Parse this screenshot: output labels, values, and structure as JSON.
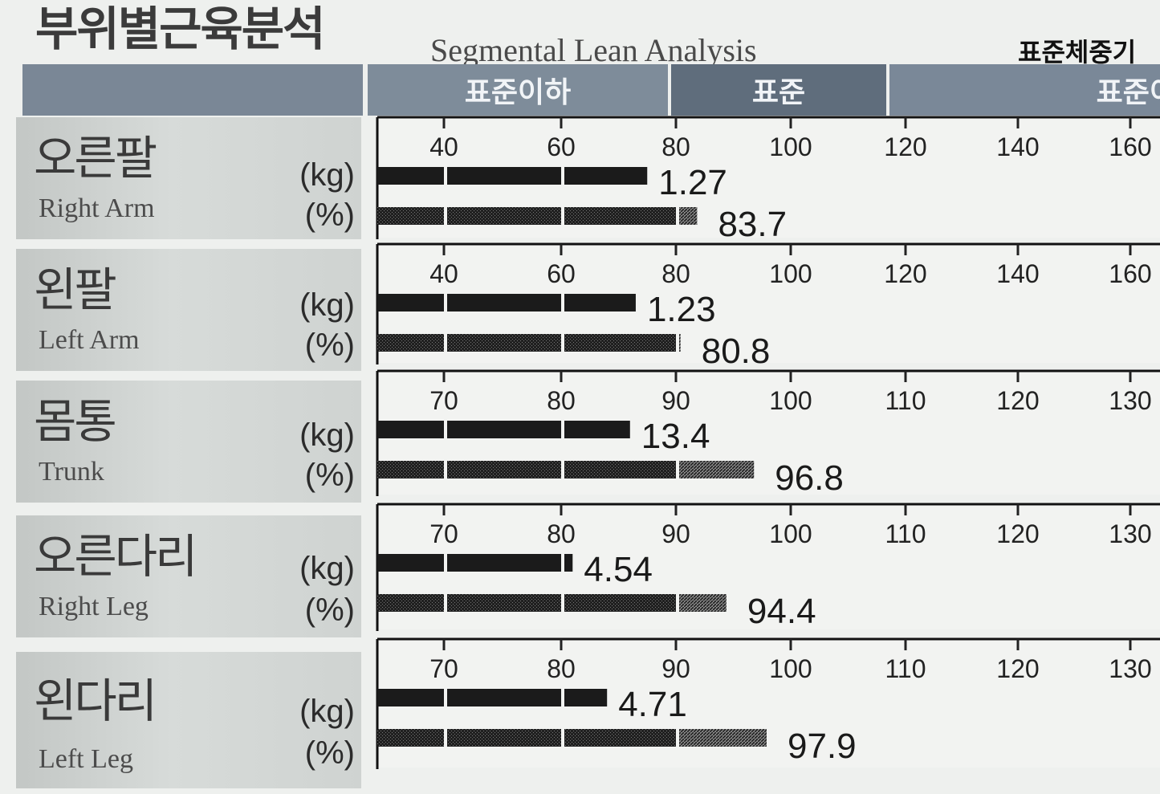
{
  "header": {
    "title_ko": "부위별근육분석",
    "title_en": "Segmental Lean Analysis",
    "standard_weight": "표준체중기"
  },
  "zones": [
    {
      "label": "표준이하",
      "color": "#7e8c9a"
    },
    {
      "label": "표준",
      "color": "#5f6d7c"
    },
    {
      "label": "표준이",
      "color": "#7a8898"
    }
  ],
  "units": {
    "kg": "(kg)",
    "pct": "(%)"
  },
  "colors": {
    "kg_bar": "#1b1b1b",
    "pct_bar": "#3d3d3d",
    "frame": "#111111"
  },
  "chart_data": [
    {
      "type": "bar",
      "segment_ko": "오른팔",
      "segment_en": "Right Arm",
      "axis_ticks": [
        40,
        60,
        80,
        100,
        120,
        140,
        160
      ],
      "xlim": [
        40,
        160
      ],
      "kg": {
        "value": 1.27,
        "bar_percent": 75
      },
      "pct": {
        "value": 83.7
      }
    },
    {
      "type": "bar",
      "segment_ko": "왼팔",
      "segment_en": "Left Arm",
      "axis_ticks": [
        40,
        60,
        80,
        100,
        120,
        140,
        160
      ],
      "xlim": [
        40,
        160
      ],
      "kg": {
        "value": 1.23,
        "bar_percent": 73
      },
      "pct": {
        "value": 80.8
      }
    },
    {
      "type": "bar",
      "segment_ko": "몸통",
      "segment_en": "Trunk",
      "axis_ticks": [
        70,
        80,
        90,
        100,
        110,
        120,
        130
      ],
      "xlim": [
        70,
        130
      ],
      "kg": {
        "value": 13.4,
        "bar_percent": 86
      },
      "pct": {
        "value": 96.8
      }
    },
    {
      "type": "bar",
      "segment_ko": "오른다리",
      "segment_en": "Right Leg",
      "axis_ticks": [
        70,
        80,
        90,
        100,
        110,
        120,
        130
      ],
      "xlim": [
        70,
        130
      ],
      "kg": {
        "value": 4.54,
        "bar_percent": 81
      },
      "pct": {
        "value": 94.4
      }
    },
    {
      "type": "bar",
      "segment_ko": "왼다리",
      "segment_en": "Left Leg",
      "axis_ticks": [
        70,
        80,
        90,
        100,
        110,
        120,
        130
      ],
      "xlim": [
        70,
        130
      ],
      "kg": {
        "value": 4.71,
        "bar_percent": 84
      },
      "pct": {
        "value": 97.9
      }
    }
  ]
}
